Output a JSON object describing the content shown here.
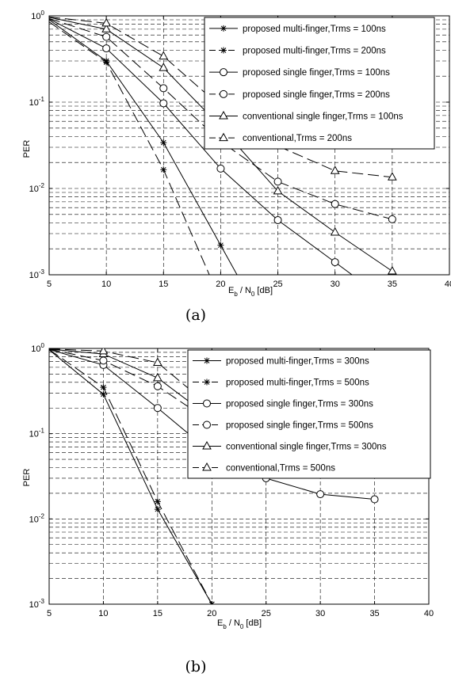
{
  "figures": [
    {
      "caption": "(a)",
      "chart_data": {
        "type": "line",
        "title": "",
        "xlabel": {
          "base": "E",
          "sub1": "b",
          "mid": " / N",
          "sub2": "0",
          "tail": " [dB]"
        },
        "ylabel": "PER",
        "yscale": "log",
        "xlim": [
          5,
          40
        ],
        "ylim": [
          0.001,
          1
        ],
        "x_ticks": [
          "5",
          "10",
          "15",
          "20",
          "25",
          "30",
          "35",
          "40"
        ],
        "y_ticks": [
          {
            "base": "10",
            "exp": "0"
          },
          {
            "base": "10",
            "exp": "-1"
          },
          {
            "base": "10",
            "exp": "-2"
          },
          {
            "base": "10",
            "exp": "-3"
          }
        ],
        "grid": true,
        "legend_position": "top-right",
        "series": [
          {
            "name": "proposed multi-finger,Trms = 100ns",
            "marker": "star",
            "dash": "solid",
            "x": [
              5,
              10,
              15,
              20,
              25
            ],
            "y": [
              0.9,
              0.3,
              0.034,
              0.0022,
              0.00014
            ]
          },
          {
            "name": "proposed multi-finger,Trms = 200ns",
            "marker": "star",
            "dash": "dashed",
            "x": [
              5,
              10,
              15,
              20
            ],
            "y": [
              0.85,
              0.29,
              0.0165,
              0.0005
            ]
          },
          {
            "name": "proposed single finger,Trms = 100ns",
            "marker": "circle",
            "dash": "solid",
            "x": [
              5,
              10,
              15,
              20,
              25,
              30,
              35
            ],
            "y": [
              0.92,
              0.42,
              0.097,
              0.017,
              0.0043,
              0.0014,
              0.00045
            ]
          },
          {
            "name": "proposed single finger,Trms = 200ns",
            "marker": "circle",
            "dash": "dashed",
            "x": [
              5,
              10,
              15,
              20,
              25,
              30,
              35
            ],
            "y": [
              0.93,
              0.57,
              0.145,
              0.035,
              0.012,
              0.0066,
              0.0044
            ]
          },
          {
            "name": "conventional single finger,Trms = 100ns",
            "marker": "triangle",
            "dash": "solid",
            "x": [
              5,
              10,
              15,
              20,
              25,
              30,
              35
            ],
            "y": [
              0.96,
              0.7,
              0.25,
              0.052,
              0.0093,
              0.0031,
              0.0011
            ]
          },
          {
            "name": "conventional,Trms = 200ns",
            "marker": "triangle",
            "dash": "dashed",
            "x": [
              5,
              10,
              15,
              20,
              25,
              30,
              35
            ],
            "y": [
              0.97,
              0.82,
              0.34,
              0.089,
              0.031,
              0.016,
              0.0135
            ]
          }
        ]
      }
    },
    {
      "caption": "(b)",
      "chart_data": {
        "type": "line",
        "title": "",
        "xlabel": {
          "base": "E",
          "sub1": "b",
          "mid": " / N",
          "sub2": "0",
          "tail": " [dB]"
        },
        "ylabel": "PER",
        "yscale": "log",
        "xlim": [
          5,
          40
        ],
        "ylim": [
          0.001,
          1
        ],
        "x_ticks": [
          "5",
          "10",
          "15",
          "20",
          "25",
          "30",
          "35",
          "40"
        ],
        "y_ticks": [
          {
            "base": "10",
            "exp": "0"
          },
          {
            "base": "10",
            "exp": "-1"
          },
          {
            "base": "10",
            "exp": "-2"
          },
          {
            "base": "10",
            "exp": "-3"
          }
        ],
        "grid": true,
        "legend_position": "top-right",
        "series": [
          {
            "name": "proposed multi-finger,Trms = 300ns",
            "marker": "star",
            "dash": "solid",
            "x": [
              5,
              10,
              15,
              20
            ],
            "y": [
              0.96,
              0.29,
              0.013,
              0.001
            ]
          },
          {
            "name": "proposed multi-finger,Trms = 500ns",
            "marker": "star",
            "dash": "dashed",
            "x": [
              5,
              10,
              15,
              20
            ],
            "y": [
              0.97,
              0.35,
              0.016,
              0.001
            ]
          },
          {
            "name": "proposed single finger,Trms = 300ns",
            "marker": "circle",
            "dash": "solid",
            "x": [
              5,
              10,
              15,
              20,
              25,
              30,
              35
            ],
            "y": [
              0.97,
              0.64,
              0.2,
              0.059,
              0.03,
              0.0195,
              0.017
            ]
          },
          {
            "name": "proposed single finger,Trms = 500ns",
            "marker": "circle",
            "dash": "dashed",
            "x": [
              5,
              10,
              15,
              20,
              25,
              30,
              35
            ],
            "y": [
              0.98,
              0.72,
              0.36,
              0.135,
              0.085,
              0.073,
              0.068
            ]
          },
          {
            "name": "conventional single finger,Trms = 300ns",
            "marker": "triangle",
            "dash": "solid",
            "x": [
              5,
              10,
              15,
              20,
              25,
              30,
              35
            ],
            "y": [
              0.98,
              0.86,
              0.45,
              0.15,
              0.079,
              0.055,
              0.047
            ]
          },
          {
            "name": "conventional,Trms = 500ns",
            "marker": "triangle",
            "dash": "dashed",
            "x": [
              5,
              10,
              15,
              20,
              25,
              30,
              35
            ],
            "y": [
              0.99,
              0.93,
              0.68,
              0.2,
              0.088,
              0.075,
              0.068
            ]
          }
        ]
      }
    }
  ]
}
